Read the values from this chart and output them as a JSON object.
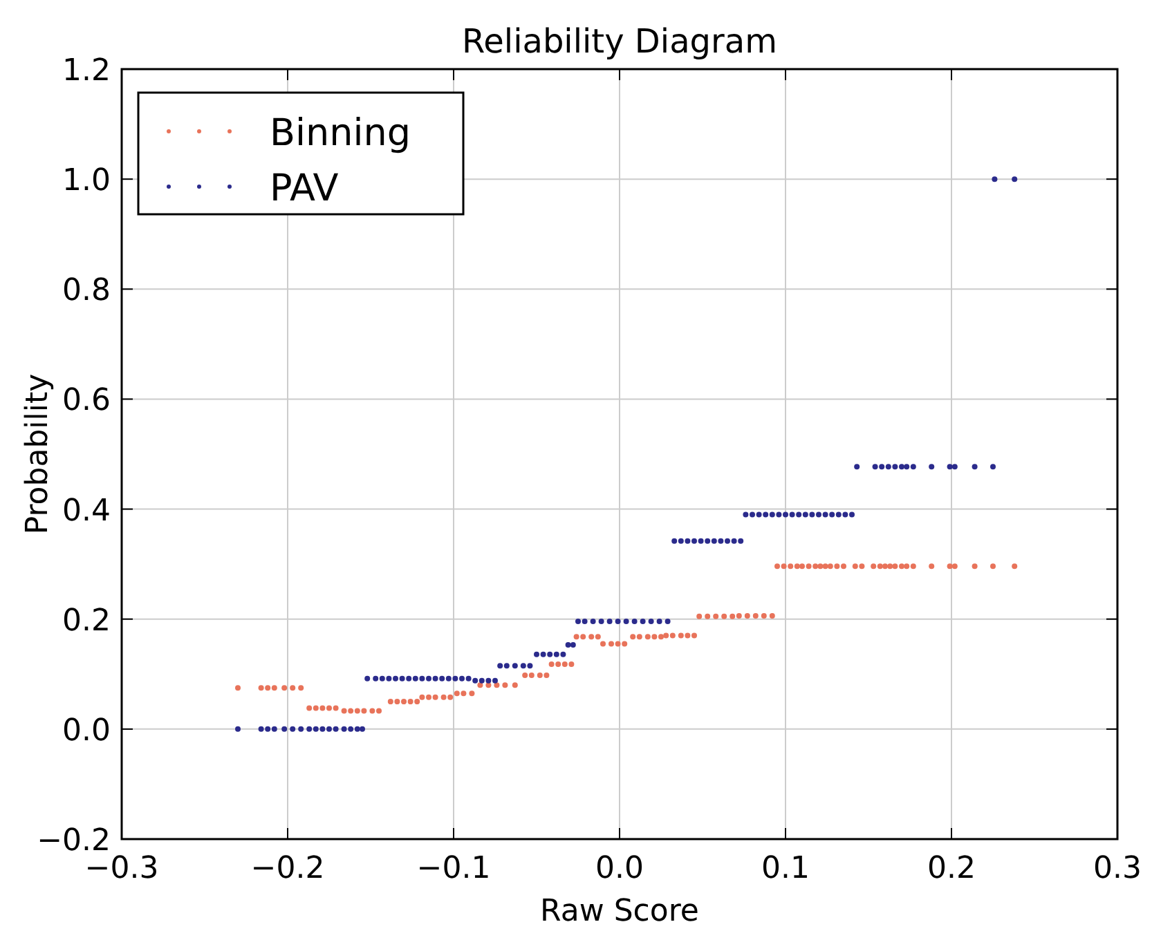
{
  "chart_data": {
    "type": "scatter",
    "title": "Reliability Diagram",
    "xlabel": "Raw Score",
    "ylabel": "Probability",
    "xlim": [
      -0.3,
      0.3
    ],
    "xticks": [
      {
        "value": -0.3,
        "label": "−0.3"
      },
      {
        "value": -0.2,
        "label": "−0.2"
      },
      {
        "value": -0.1,
        "label": "−0.1"
      },
      {
        "value": 0,
        "label": "0.0"
      },
      {
        "value": 0.1,
        "label": "0.1"
      },
      {
        "value": 0.2,
        "label": "0.2"
      },
      {
        "value": 0.3,
        "label": "0.3"
      }
    ],
    "ylim": [
      -0.2,
      1.2
    ],
    "yticks": [
      {
        "value": -0.2,
        "label": "−0.2"
      },
      {
        "value": 0,
        "label": "0.0"
      },
      {
        "value": 0.2,
        "label": "0.2"
      },
      {
        "value": 0.4,
        "label": "0.4"
      },
      {
        "value": 0.6,
        "label": "0.6"
      },
      {
        "value": 0.8,
        "label": "0.8"
      },
      {
        "value": 1,
        "label": "1.0"
      },
      {
        "value": 1.2,
        "label": "1.2"
      }
    ],
    "grid": true,
    "legend": "top left",
    "marker": "circle",
    "series": [
      {
        "name": "Binning",
        "color": "#e8735a",
        "x": [
          -0.23,
          -0.216,
          -0.212,
          -0.208,
          -0.202,
          -0.197,
          -0.192,
          -0.187,
          -0.183,
          -0.179,
          -0.175,
          -0.171,
          -0.166,
          -0.162,
          -0.158,
          -0.154,
          -0.149,
          -0.145,
          -0.138,
          -0.134,
          -0.13,
          -0.126,
          -0.122,
          -0.119,
          -0.115,
          -0.111,
          -0.106,
          -0.102,
          -0.098,
          -0.094,
          -0.089,
          -0.084,
          -0.079,
          -0.074,
          -0.069,
          -0.063,
          -0.057,
          -0.053,
          -0.048,
          -0.044,
          -0.041,
          -0.037,
          -0.033,
          -0.029,
          -0.026,
          -0.022,
          -0.017,
          -0.013,
          -0.01,
          -0.005,
          -0.001,
          0.003,
          0.008,
          0.012,
          0.017,
          0.021,
          0.025,
          0.028,
          0.032,
          0.037,
          0.041,
          0.045,
          0.048,
          0.053,
          0.058,
          0.063,
          0.068,
          0.072,
          0.077,
          0.082,
          0.087,
          0.092,
          0.095,
          0.099,
          0.103,
          0.107,
          0.11,
          0.114,
          0.118,
          0.121,
          0.124,
          0.127,
          0.131,
          0.135,
          0.142,
          0.146,
          0.153,
          0.157,
          0.16,
          0.163,
          0.166,
          0.17,
          0.173,
          0.177,
          0.188,
          0.199,
          0.202,
          0.214,
          0.225,
          0.238
        ],
        "values": [
          0.075,
          0.075,
          0.075,
          0.075,
          0.075,
          0.075,
          0.075,
          0.038,
          0.038,
          0.038,
          0.038,
          0.038,
          0.033,
          0.033,
          0.033,
          0.033,
          0.033,
          0.033,
          0.05,
          0.05,
          0.05,
          0.05,
          0.05,
          0.058,
          0.058,
          0.058,
          0.058,
          0.058,
          0.065,
          0.065,
          0.065,
          0.08,
          0.08,
          0.08,
          0.08,
          0.08,
          0.098,
          0.098,
          0.098,
          0.098,
          0.118,
          0.118,
          0.118,
          0.118,
          0.168,
          0.168,
          0.168,
          0.168,
          0.155,
          0.155,
          0.155,
          0.155,
          0.168,
          0.168,
          0.168,
          0.168,
          0.168,
          0.17,
          0.17,
          0.17,
          0.17,
          0.17,
          0.205,
          0.205,
          0.205,
          0.205,
          0.205,
          0.206,
          0.206,
          0.206,
          0.206,
          0.206,
          0.296,
          0.296,
          0.296,
          0.296,
          0.296,
          0.296,
          0.296,
          0.296,
          0.296,
          0.296,
          0.296,
          0.296,
          0.296,
          0.296,
          0.296,
          0.296,
          0.296,
          0.296,
          0.296,
          0.296,
          0.296,
          0.296,
          0.296,
          0.296,
          0.296,
          0.296,
          0.296,
          0.296
        ]
      },
      {
        "name": "PAV",
        "color": "#2b2b8c",
        "x": [
          -0.23,
          -0.216,
          -0.212,
          -0.208,
          -0.202,
          -0.197,
          -0.192,
          -0.187,
          -0.183,
          -0.179,
          -0.175,
          -0.171,
          -0.166,
          -0.162,
          -0.158,
          -0.155,
          -0.152,
          -0.147,
          -0.143,
          -0.139,
          -0.135,
          -0.131,
          -0.127,
          -0.123,
          -0.119,
          -0.115,
          -0.111,
          -0.107,
          -0.103,
          -0.099,
          -0.095,
          -0.091,
          -0.087,
          -0.083,
          -0.079,
          -0.075,
          -0.072,
          -0.068,
          -0.063,
          -0.058,
          -0.054,
          -0.05,
          -0.046,
          -0.042,
          -0.038,
          -0.034,
          -0.031,
          -0.028,
          -0.025,
          -0.021,
          -0.016,
          -0.011,
          -0.006,
          -0.001,
          0.004,
          0.009,
          0.014,
          0.019,
          0.024,
          0.029,
          0.033,
          0.037,
          0.041,
          0.045,
          0.049,
          0.053,
          0.057,
          0.061,
          0.065,
          0.069,
          0.073,
          0.076,
          0.08,
          0.084,
          0.088,
          0.092,
          0.096,
          0.1,
          0.104,
          0.108,
          0.112,
          0.116,
          0.12,
          0.124,
          0.128,
          0.132,
          0.136,
          0.14,
          0.143,
          0.154,
          0.158,
          0.162,
          0.166,
          0.17,
          0.173,
          0.177,
          0.188,
          0.199,
          0.202,
          0.214,
          0.225,
          0.226,
          0.238
        ],
        "values": [
          0,
          0,
          0,
          0,
          0,
          0,
          0,
          0,
          0,
          0,
          0,
          0,
          0,
          0,
          0,
          0,
          0.092,
          0.092,
          0.092,
          0.092,
          0.092,
          0.092,
          0.092,
          0.092,
          0.092,
          0.092,
          0.092,
          0.092,
          0.092,
          0.092,
          0.092,
          0.092,
          0.088,
          0.088,
          0.088,
          0.088,
          0.115,
          0.115,
          0.115,
          0.115,
          0.115,
          0.136,
          0.136,
          0.136,
          0.136,
          0.136,
          0.153,
          0.153,
          0.196,
          0.196,
          0.196,
          0.196,
          0.196,
          0.196,
          0.196,
          0.196,
          0.196,
          0.196,
          0.196,
          0.196,
          0.342,
          0.342,
          0.342,
          0.342,
          0.342,
          0.342,
          0.342,
          0.342,
          0.342,
          0.342,
          0.342,
          0.39,
          0.39,
          0.39,
          0.39,
          0.39,
          0.39,
          0.39,
          0.39,
          0.39,
          0.39,
          0.39,
          0.39,
          0.39,
          0.39,
          0.39,
          0.39,
          0.39,
          0.477,
          0.477,
          0.477,
          0.477,
          0.477,
          0.477,
          0.477,
          0.477,
          0.477,
          0.477,
          0.477,
          0.477,
          0.477,
          1.0,
          1.0
        ]
      }
    ]
  }
}
